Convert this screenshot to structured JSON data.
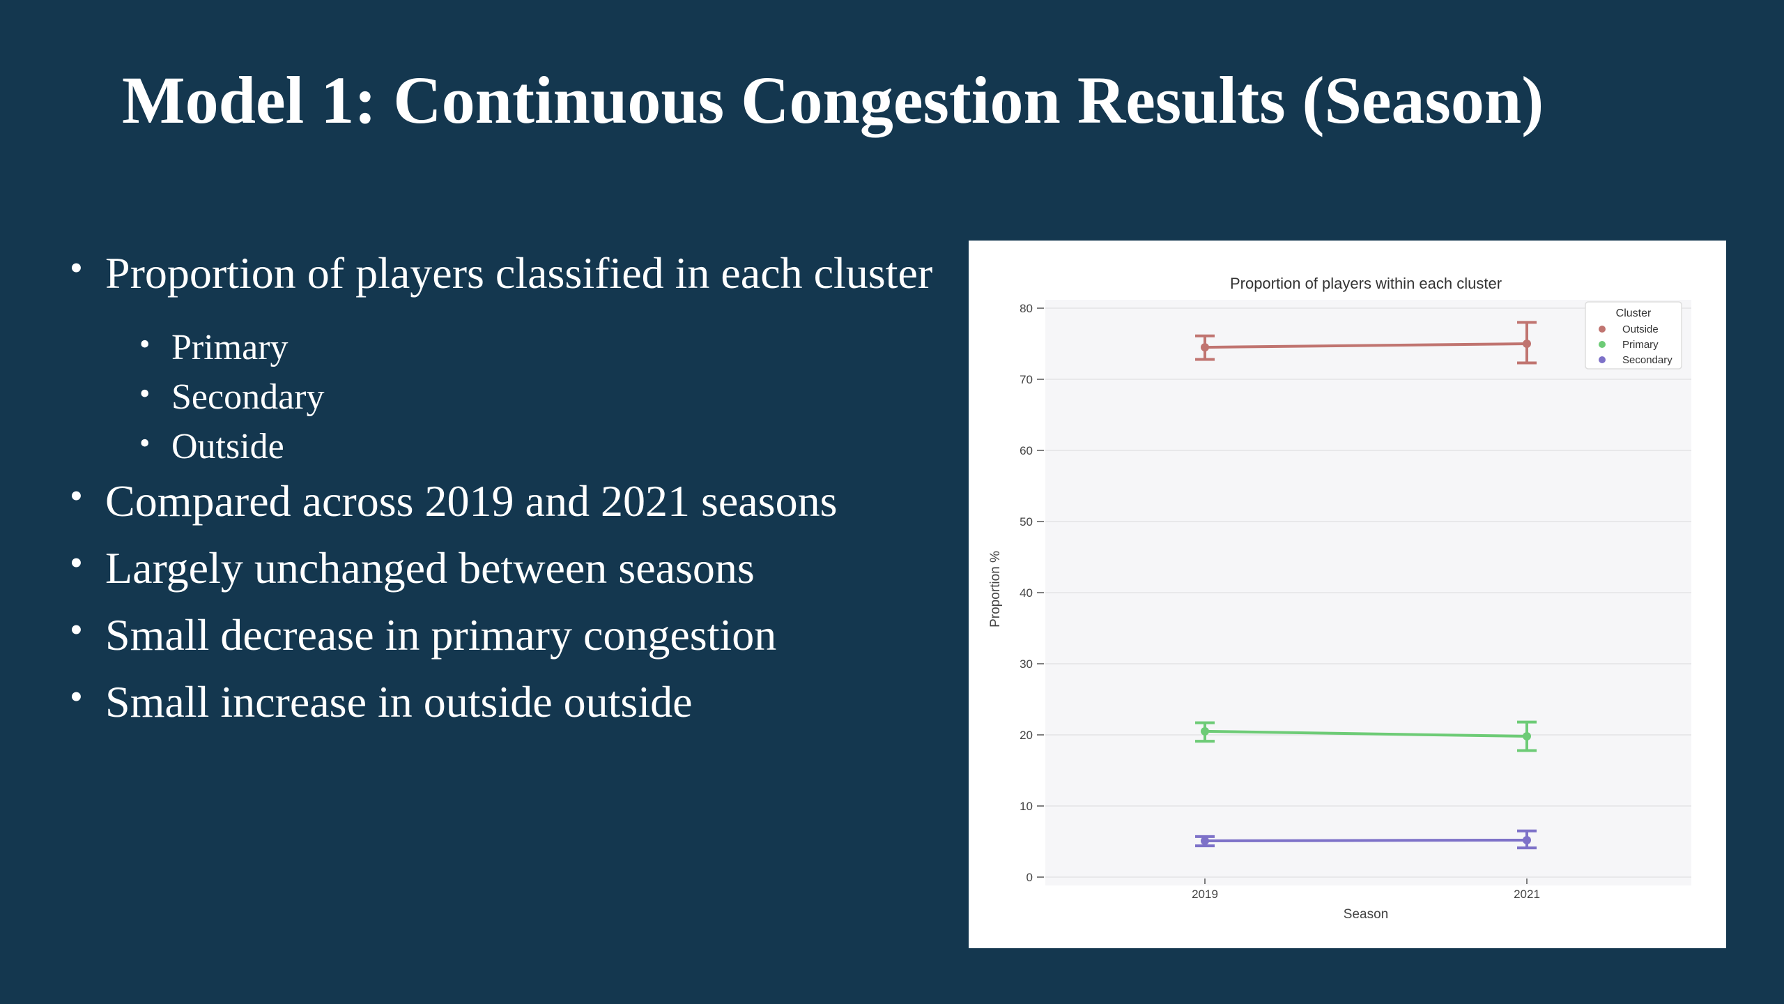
{
  "slide": {
    "title": "Model 1: Continuous Congestion Results (Season)",
    "bullets": [
      "Proportion of players classified in each cluster",
      "Primary",
      "Secondary",
      "Outside",
      "Compared across 2019 and 2021 seasons",
      "Largely unchanged between seasons",
      "Small decrease in primary congestion",
      "Small increase in outside outside"
    ],
    "bullet_glyph": "•"
  },
  "chart_data": {
    "type": "line",
    "title": "Proportion of players within each cluster",
    "xlabel": "Season",
    "ylabel": "Proportion %",
    "x": [
      "2019",
      "2021"
    ],
    "ylim": [
      0,
      80
    ],
    "yticks": [
      "0",
      "10",
      "20",
      "30",
      "40",
      "50",
      "60",
      "70",
      "80"
    ],
    "grid": true,
    "legend": {
      "title": "Cluster",
      "position": "top-right"
    },
    "series": [
      {
        "name": "Outside",
        "color": "#c07470",
        "values": [
          74.5,
          75.0
        ],
        "err_low": [
          72.8,
          72.3
        ],
        "err_high": [
          76.1,
          78.0
        ]
      },
      {
        "name": "Primary",
        "color": "#6dcb76",
        "values": [
          20.5,
          19.8
        ],
        "err_low": [
          19.1,
          17.8
        ],
        "err_high": [
          21.7,
          21.8
        ]
      },
      {
        "name": "Secondary",
        "color": "#7d71c8",
        "values": [
          5.1,
          5.2
        ],
        "err_low": [
          4.4,
          4.1
        ],
        "err_high": [
          5.7,
          6.5
        ]
      }
    ]
  }
}
